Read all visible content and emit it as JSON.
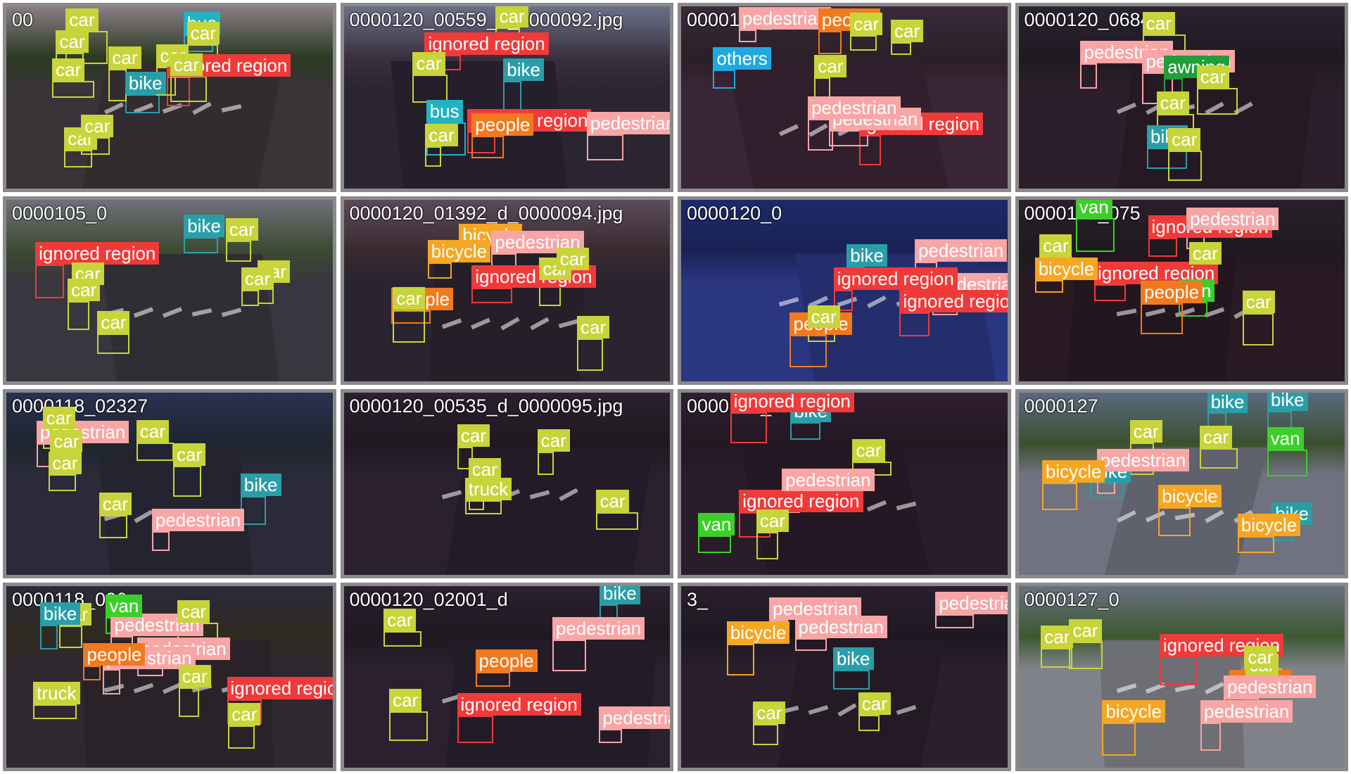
{
  "mosaic": {
    "classes": {
      "car": {
        "label": "car",
        "color": "#c8d43a",
        "text": "#ffffff"
      },
      "pedestrian": {
        "label": "pedestrian",
        "color": "#f7a5a5",
        "text": "#ffffff"
      },
      "people": {
        "label": "people",
        "color": "#f07a1e",
        "text": "#ffffff"
      },
      "bike": {
        "label": "bike",
        "color": "#2a9ea8",
        "text": "#ffffff"
      },
      "bicycle": {
        "label": "bicycle",
        "color": "#f5a623",
        "text": "#ffffff"
      },
      "ignored region": {
        "label": "ignored region",
        "color": "#f03a3a",
        "text": "#ffffff"
      },
      "van": {
        "label": "van",
        "color": "#3ccf2a",
        "text": "#ffffff"
      },
      "truck": {
        "label": "truck",
        "color": "#c8d43a",
        "text": "#ffffff"
      },
      "bus": {
        "label": "bus",
        "color": "#22b3c2",
        "text": "#ffffff"
      },
      "others": {
        "label": "others",
        "color": "#20a8e0",
        "text": "#ffffff"
      },
      "awning": {
        "label": "awning",
        "color": "#1f9e3a",
        "text": "#ffffff"
      }
    },
    "tiles": [
      {
        "name": "00",
        "scene": {
          "sky": "#8a7e86",
          "ground": "#3a3438",
          "trees": "#2b3a22"
        },
        "detections": [
          {
            "cls": "ignored region"
          },
          {
            "cls": "bus"
          },
          {
            "cls": "car"
          },
          {
            "cls": "car"
          },
          {
            "cls": "car"
          },
          {
            "cls": "bike"
          },
          {
            "cls": "car"
          },
          {
            "cls": "car"
          },
          {
            "cls": "car"
          },
          {
            "cls": "car"
          },
          {
            "cls": "car"
          },
          {
            "cls": "car"
          }
        ]
      },
      {
        "name": "0000120_00559_d_0000092.jpg",
        "scene": {
          "sky": "#6b7088",
          "ground": "#2a2531",
          "trees": "#3b3040"
        },
        "detections": [
          {
            "cls": "ignored region"
          },
          {
            "cls": "ignored region"
          },
          {
            "cls": "bus"
          },
          {
            "cls": "pedestrian"
          },
          {
            "cls": "car"
          },
          {
            "cls": "car"
          },
          {
            "cls": "car"
          },
          {
            "cls": "bike"
          },
          {
            "cls": "people"
          }
        ]
      },
      {
        "name": "0000120_02946",
        "scene": {
          "sky": "#3b2a3a",
          "ground": "#3a2536",
          "trees": "#2a2028"
        },
        "detections": [
          {
            "cls": "ignored region"
          },
          {
            "cls": "pedestrian"
          },
          {
            "cls": "pedestrian"
          },
          {
            "cls": "people"
          },
          {
            "cls": "others"
          },
          {
            "cls": "car"
          },
          {
            "cls": "car"
          },
          {
            "cls": "car"
          },
          {
            "cls": "pedestrian"
          }
        ]
      },
      {
        "name": "0000120_06848",
        "scene": {
          "sky": "#2a2330",
          "ground": "#2c1e2a",
          "trees": "#1f1a22"
        },
        "detections": [
          {
            "cls": "pedestrian"
          },
          {
            "cls": "pedestrian"
          },
          {
            "cls": "awning"
          },
          {
            "cls": "car"
          },
          {
            "cls": "bike"
          },
          {
            "cls": "car"
          },
          {
            "cls": "car"
          },
          {
            "cls": "car"
          }
        ]
      },
      {
        "name": "0000105_0",
        "scene": {
          "sky": "#70707a",
          "ground": "#38363e",
          "trees": "#3c4a32"
        },
        "detections": [
          {
            "cls": "ignored region"
          },
          {
            "cls": "bike"
          },
          {
            "cls": "car"
          },
          {
            "cls": "car"
          },
          {
            "cls": "car"
          },
          {
            "cls": "car"
          },
          {
            "cls": "car"
          },
          {
            "cls": "car"
          }
        ]
      },
      {
        "name": "0000120_01392_d_0000094.jpg",
        "scene": {
          "sky": "#5a4b5a",
          "ground": "#2a2430",
          "trees": "#3a2a30"
        },
        "detections": [
          {
            "cls": "ignored region"
          },
          {
            "cls": "bicycle"
          },
          {
            "cls": "people"
          },
          {
            "cls": "pedestrian"
          },
          {
            "cls": "car"
          },
          {
            "cls": "car"
          },
          {
            "cls": "car"
          },
          {
            "cls": "car"
          },
          {
            "cls": "bicycle"
          }
        ]
      },
      {
        "name": "0000120_0",
        "scene": {
          "sky": "#1d2a6a",
          "ground": "#2a3680",
          "trees": "#1a2255"
        },
        "detections": [
          {
            "cls": "pedestrian"
          },
          {
            "cls": "ignored region"
          },
          {
            "cls": "ignored region"
          },
          {
            "cls": "bike"
          },
          {
            "cls": "people"
          },
          {
            "cls": "car"
          },
          {
            "cls": "pedestrian"
          }
        ]
      },
      {
        "name": "0000120_075",
        "scene": {
          "sky": "#2a1f2a",
          "ground": "#2a1a24",
          "trees": "#1f1a20"
        },
        "detections": [
          {
            "cls": "ignored region"
          },
          {
            "cls": "ignored region"
          },
          {
            "cls": "van"
          },
          {
            "cls": "bicycle"
          },
          {
            "cls": "pedestrian"
          },
          {
            "cls": "people"
          },
          {
            "cls": "van"
          },
          {
            "cls": "car"
          },
          {
            "cls": "car"
          },
          {
            "cls": "car"
          }
        ]
      },
      {
        "name": "0000118_02327",
        "scene": {
          "sky": "#2a3050",
          "ground": "#2a2a38",
          "trees": "#1f2630"
        },
        "detections": [
          {
            "cls": "pedestrian"
          },
          {
            "cls": "pedestrian"
          },
          {
            "cls": "car"
          },
          {
            "cls": "car"
          },
          {
            "cls": "car"
          },
          {
            "cls": "bike"
          },
          {
            "cls": "car"
          },
          {
            "cls": "car"
          },
          {
            "cls": "car"
          }
        ]
      },
      {
        "name": "0000120_00535_d_0000095.jpg",
        "scene": {
          "sky": "#2a2030",
          "ground": "#2a2030",
          "trees": "#201820"
        },
        "detections": [
          {
            "cls": "car"
          },
          {
            "cls": "car"
          },
          {
            "cls": "car"
          },
          {
            "cls": "truck"
          },
          {
            "cls": "car"
          }
        ]
      },
      {
        "name": "0000120_04",
        "scene": {
          "sky": "#301e30",
          "ground": "#2a1c2a",
          "trees": "#221822"
        },
        "detections": [
          {
            "cls": "ignored region"
          },
          {
            "cls": "pedestrian"
          },
          {
            "cls": "bike"
          },
          {
            "cls": "van"
          },
          {
            "cls": "car"
          },
          {
            "cls": "car"
          },
          {
            "cls": "ignored region"
          }
        ]
      },
      {
        "name": "0000127",
        "scene": {
          "sky": "#5a6a80",
          "ground": "#707280",
          "trees": "#3a5030"
        },
        "detections": [
          {
            "cls": "bike"
          },
          {
            "cls": "pedestrian"
          },
          {
            "cls": "bicycle"
          },
          {
            "cls": "van"
          },
          {
            "cls": "bike"
          },
          {
            "cls": "bicycle"
          },
          {
            "cls": "bike"
          },
          {
            "cls": "car"
          },
          {
            "cls": "car"
          },
          {
            "cls": "bike"
          },
          {
            "cls": "bicycle"
          }
        ]
      },
      {
        "name": "0000118_026",
        "scene": {
          "sky": "#2a2a3a",
          "ground": "#302830",
          "trees": "#302a20"
        },
        "detections": [
          {
            "cls": "ignored region"
          },
          {
            "cls": "truck"
          },
          {
            "cls": "pedestrian"
          },
          {
            "cls": "pedestrian"
          },
          {
            "cls": "car"
          },
          {
            "cls": "van"
          },
          {
            "cls": "bike"
          },
          {
            "cls": "pedestrian"
          },
          {
            "cls": "car"
          },
          {
            "cls": "car"
          },
          {
            "cls": "people"
          },
          {
            "cls": "car"
          }
        ]
      },
      {
        "name": "0000120_02001_d",
        "scene": {
          "sky": "#2a2030",
          "ground": "#2a2030",
          "trees": "#201820"
        },
        "detections": [
          {
            "cls": "ignored region"
          },
          {
            "cls": "bike"
          },
          {
            "cls": "pedestrian"
          },
          {
            "cls": "pedestrian"
          },
          {
            "cls": "car"
          },
          {
            "cls": "car"
          },
          {
            "cls": "people"
          }
        ]
      },
      {
        "name": "3_",
        "scene": {
          "sky": "#2a1f2c",
          "ground": "#2a1f2c",
          "trees": "#1e1822"
        },
        "detections": [
          {
            "cls": "bicycle"
          },
          {
            "cls": "bike"
          },
          {
            "cls": "pedestrian"
          },
          {
            "cls": "pedestrian"
          },
          {
            "cls": "car"
          },
          {
            "cls": "car"
          },
          {
            "cls": "pedestrian"
          }
        ]
      },
      {
        "name": "0000127_0",
        "scene": {
          "sky": "#6a7080",
          "ground": "#80828a",
          "trees": "#3a5a30"
        },
        "detections": [
          {
            "cls": "ignored region"
          },
          {
            "cls": "people"
          },
          {
            "cls": "bicycle"
          },
          {
            "cls": "pedestrian"
          },
          {
            "cls": "car"
          },
          {
            "cls": "car"
          },
          {
            "cls": "car"
          },
          {
            "cls": "pedestrian"
          },
          {
            "cls": "car"
          }
        ]
      }
    ]
  }
}
